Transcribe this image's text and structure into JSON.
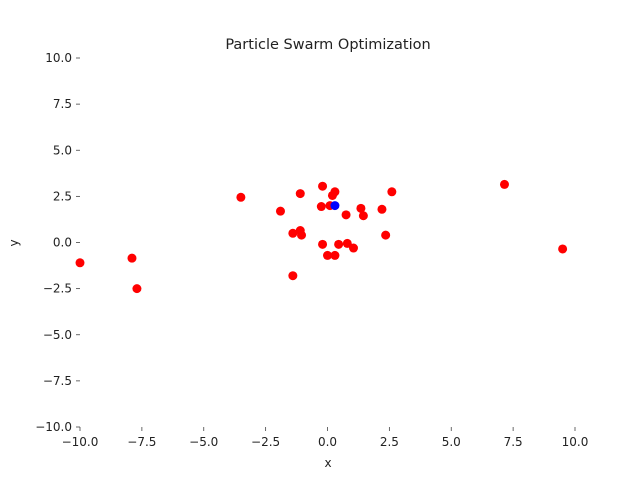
{
  "chart_data": {
    "type": "scatter",
    "title": "Particle Swarm Optimization",
    "xlabel": "x",
    "ylabel": "y",
    "xlim": [
      -10,
      10
    ],
    "ylim": [
      -10,
      10
    ],
    "x_ticks": [
      -10.0,
      -7.5,
      -5.0,
      -2.5,
      0.0,
      2.5,
      5.0,
      7.5,
      10.0
    ],
    "y_ticks": [
      -10.0,
      -7.5,
      -5.0,
      -2.5,
      0.0,
      2.5,
      5.0,
      7.5,
      10.0
    ],
    "x_tick_labels": [
      "−10.0",
      "−7.5",
      "−5.0",
      "−2.5",
      "0.0",
      "2.5",
      "5.0",
      "7.5",
      "10.0"
    ],
    "y_tick_labels": [
      "−10.0",
      "−7.5",
      "−5.0",
      "−2.5",
      "0.0",
      "2.5",
      "5.0",
      "7.5",
      "10.0"
    ],
    "grid": false,
    "series": [
      {
        "color": "#ff0000",
        "points": [
          [
            -10.0,
            -1.1
          ],
          [
            -7.9,
            -0.85
          ],
          [
            -7.7,
            -2.5
          ],
          [
            -3.5,
            2.45
          ],
          [
            -1.9,
            1.7
          ],
          [
            -1.4,
            0.5
          ],
          [
            -1.4,
            -1.8
          ],
          [
            -1.1,
            2.65
          ],
          [
            -1.1,
            0.65
          ],
          [
            -1.05,
            0.4
          ],
          [
            -0.2,
            3.05
          ],
          [
            -0.25,
            1.95
          ],
          [
            -0.2,
            -0.1
          ],
          [
            0.0,
            -0.7
          ],
          [
            0.1,
            2.0
          ],
          [
            0.2,
            2.55
          ],
          [
            0.3,
            2.75
          ],
          [
            0.3,
            -0.7
          ],
          [
            0.45,
            -0.1
          ],
          [
            0.75,
            1.5
          ],
          [
            0.8,
            -0.05
          ],
          [
            1.05,
            -0.3
          ],
          [
            1.35,
            1.85
          ],
          [
            1.45,
            1.45
          ],
          [
            2.2,
            1.8
          ],
          [
            2.35,
            0.4
          ],
          [
            2.6,
            2.75
          ],
          [
            7.15,
            3.15
          ],
          [
            9.5,
            -0.35
          ]
        ]
      },
      {
        "color": "#0000ff",
        "points": [
          [
            0.3,
            2.0
          ]
        ]
      }
    ]
  }
}
